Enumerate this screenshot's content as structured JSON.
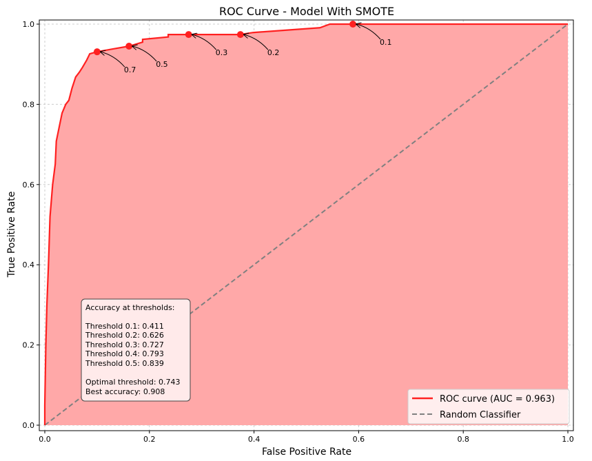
{
  "chart_data": {
    "type": "line",
    "title": "ROC Curve - Model With SMOTE",
    "xlabel": "False Positive Rate",
    "ylabel": "True Positive Rate",
    "xlim": [
      -0.005,
      1.01
    ],
    "ylim": [
      -0.01,
      1.01
    ],
    "xticks": [
      "0.0",
      "0.2",
      "0.4",
      "0.6",
      "0.8",
      "1.0"
    ],
    "yticks": [
      "0.0",
      "0.2",
      "0.4",
      "0.6",
      "0.8",
      "1.0"
    ],
    "grid": true,
    "legend_placement": "bottom-right",
    "series": [
      {
        "name": "ROC curve (AUC = 0.963)",
        "color": "#ff2020",
        "fill": "#ffa8a8",
        "points": [
          [
            0,
            0
          ],
          [
            0,
            0.05
          ],
          [
            0.002,
            0.2
          ],
          [
            0.004,
            0.3
          ],
          [
            0.007,
            0.4
          ],
          [
            0.01,
            0.52
          ],
          [
            0.015,
            0.6
          ],
          [
            0.02,
            0.651
          ],
          [
            0.022,
            0.708
          ],
          [
            0.027,
            0.74
          ],
          [
            0.033,
            0.778
          ],
          [
            0.04,
            0.8
          ],
          [
            0.046,
            0.81
          ],
          [
            0.052,
            0.84
          ],
          [
            0.059,
            0.868
          ],
          [
            0.066,
            0.88
          ],
          [
            0.072,
            0.892
          ],
          [
            0.08,
            0.91
          ],
          [
            0.086,
            0.926
          ],
          [
            0.1,
            0.931
          ],
          [
            0.13,
            0.938
          ],
          [
            0.161,
            0.945
          ],
          [
            0.187,
            0.955
          ],
          [
            0.187,
            0.962
          ],
          [
            0.236,
            0.968
          ],
          [
            0.236,
            0.974
          ],
          [
            0.374,
            0.974
          ],
          [
            0.398,
            0.979
          ],
          [
            0.473,
            0.986
          ],
          [
            0.526,
            0.991
          ],
          [
            0.545,
            1.0
          ],
          [
            1.0,
            1.0
          ]
        ]
      },
      {
        "name": "Random Classifier",
        "color": "#808080",
        "style": "dashed",
        "points": [
          [
            0,
            0
          ],
          [
            1,
            1
          ]
        ]
      }
    ],
    "threshold_points": [
      {
        "label": "0.7",
        "fpr": 0.1,
        "tpr": 0.931
      },
      {
        "label": "0.5",
        "fpr": 0.161,
        "tpr": 0.945
      },
      {
        "label": "0.3",
        "fpr": 0.275,
        "tpr": 0.974
      },
      {
        "label": "0.2",
        "fpr": 0.374,
        "tpr": 0.974
      },
      {
        "label": "0.1",
        "fpr": 0.589,
        "tpr": 1.0
      }
    ],
    "annotation_box": {
      "heading": "Accuracy at thresholds:",
      "lines": [
        "Threshold 0.1: 0.411",
        "Threshold 0.2: 0.626",
        "Threshold 0.3: 0.727",
        "Threshold 0.4: 0.793",
        "Threshold 0.5: 0.839"
      ],
      "optimal": "Optimal threshold: 0.743",
      "best": "Best accuracy: 0.908"
    }
  }
}
